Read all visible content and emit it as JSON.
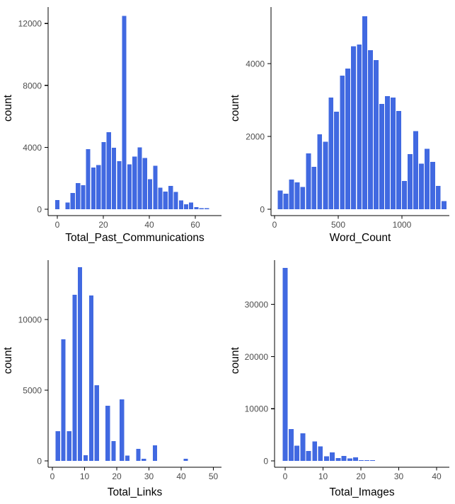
{
  "figure": {
    "background": "#ffffff",
    "bar_color": "#4169e1",
    "axis_line_color": "#000000",
    "tick_label_color": "#4d4d4d",
    "axis_title_color": "#000000"
  },
  "chart_data": [
    {
      "type": "bar",
      "subtype": "histogram",
      "title": "",
      "xlabel": "Total_Past_Communications",
      "ylabel": "count",
      "xticks": [
        0,
        20,
        40,
        60
      ],
      "yticks": [
        0,
        4000,
        8000,
        12000
      ],
      "xlim": [
        -4,
        71.5
      ],
      "ylim": [
        0,
        13050
      ],
      "grid": false,
      "legend": false,
      "binwidth": 2.24,
      "bars": [
        [
          0,
          600
        ],
        [
          4.5,
          430
        ],
        [
          6.7,
          1050
        ],
        [
          9,
          1700
        ],
        [
          11.2,
          1550
        ],
        [
          13.4,
          3880
        ],
        [
          15.7,
          2700
        ],
        [
          17.9,
          2850
        ],
        [
          20.2,
          4330
        ],
        [
          22.4,
          4970
        ],
        [
          24.6,
          3970
        ],
        [
          26.9,
          3100
        ],
        [
          29.1,
          12500
        ],
        [
          31.4,
          2900
        ],
        [
          33.6,
          3400
        ],
        [
          35.8,
          3990
        ],
        [
          38.1,
          3300
        ],
        [
          40.3,
          1950
        ],
        [
          42.6,
          2800
        ],
        [
          44.8,
          1400
        ],
        [
          47,
          1150
        ],
        [
          49.3,
          1500
        ],
        [
          51.5,
          1130
        ],
        [
          53.8,
          560
        ],
        [
          56,
          320
        ],
        [
          58.2,
          430
        ],
        [
          60.5,
          140
        ],
        [
          62.7,
          80
        ],
        [
          65,
          60
        ]
      ]
    },
    {
      "type": "bar",
      "subtype": "histogram",
      "title": "",
      "xlabel": "Word_Count",
      "ylabel": "count",
      "xticks": [
        0,
        500,
        1000
      ],
      "yticks": [
        0,
        2000,
        4000
      ],
      "xlim": [
        -28,
        1372
      ],
      "ylim": [
        0,
        5550
      ],
      "grid": false,
      "legend": false,
      "binwidth": 44.3,
      "bars": [
        [
          44,
          510
        ],
        [
          88,
          430
        ],
        [
          133,
          820
        ],
        [
          177,
          740
        ],
        [
          221,
          610
        ],
        [
          266,
          1530
        ],
        [
          310,
          1170
        ],
        [
          354,
          2060
        ],
        [
          399,
          1850
        ],
        [
          443,
          3070
        ],
        [
          487,
          2680
        ],
        [
          532,
          3670
        ],
        [
          576,
          3860
        ],
        [
          620,
          4480
        ],
        [
          665,
          4520
        ],
        [
          709,
          5300
        ],
        [
          753,
          4370
        ],
        [
          798,
          4100
        ],
        [
          842,
          2890
        ],
        [
          886,
          3110
        ],
        [
          931,
          3070
        ],
        [
          975,
          2700
        ],
        [
          1019,
          780
        ],
        [
          1064,
          1510
        ],
        [
          1108,
          2150
        ],
        [
          1152,
          1250
        ],
        [
          1197,
          1660
        ],
        [
          1241,
          1300
        ],
        [
          1285,
          640
        ],
        [
          1330,
          220
        ]
      ]
    },
    {
      "type": "bar",
      "subtype": "histogram",
      "title": "",
      "xlabel": "Total_Links",
      "ylabel": "count",
      "xticks": [
        0,
        10,
        20,
        30,
        40,
        50
      ],
      "yticks": [
        0,
        5000,
        10000
      ],
      "xlim": [
        -1.3,
        52.5
      ],
      "ylim": [
        0,
        14200
      ],
      "grid": false,
      "legend": false,
      "binwidth": 1.6,
      "bars": [
        [
          1.7,
          2100
        ],
        [
          3.4,
          8600
        ],
        [
          5.2,
          2100
        ],
        [
          6.9,
          11750
        ],
        [
          8.6,
          13700
        ],
        [
          10.3,
          400
        ],
        [
          12.1,
          11700
        ],
        [
          13.8,
          5350
        ],
        [
          17.2,
          3900
        ],
        [
          19,
          1400
        ],
        [
          21.6,
          4350
        ],
        [
          23.3,
          380
        ],
        [
          26.7,
          850
        ],
        [
          28.4,
          160
        ],
        [
          31.9,
          1100
        ],
        [
          41.4,
          160
        ]
      ]
    },
    {
      "type": "bar",
      "subtype": "histogram",
      "title": "",
      "xlabel": "Total_Images",
      "ylabel": "count",
      "xticks": [
        0,
        10,
        20,
        30,
        40
      ],
      "yticks": [
        0,
        10000,
        20000,
        30000
      ],
      "xlim": [
        -2.8,
        43.4
      ],
      "ylim": [
        0,
        38700
      ],
      "grid": false,
      "legend": false,
      "binwidth": 1.5,
      "bars": [
        [
          0,
          37000
        ],
        [
          1.6,
          6100
        ],
        [
          3.1,
          2900
        ],
        [
          4.7,
          5300
        ],
        [
          6.2,
          1900
        ],
        [
          7.8,
          3700
        ],
        [
          9.3,
          2800
        ],
        [
          10.9,
          900
        ],
        [
          12.4,
          1600
        ],
        [
          14,
          550
        ],
        [
          15.5,
          950
        ],
        [
          17.1,
          450
        ],
        [
          18.6,
          700
        ],
        [
          20.1,
          160
        ],
        [
          21.6,
          160
        ],
        [
          23.1,
          160
        ]
      ]
    }
  ]
}
